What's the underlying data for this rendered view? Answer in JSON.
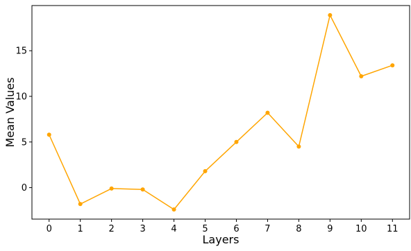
{
  "chart_data": {
    "type": "line",
    "title": "",
    "xlabel": "Layers",
    "ylabel": "Mean Values",
    "x": [
      0,
      1,
      2,
      3,
      4,
      5,
      6,
      7,
      8,
      9,
      10,
      11
    ],
    "series": [
      {
        "values": [
          5.8,
          -1.8,
          -0.1,
          -0.2,
          -2.4,
          1.8,
          5.0,
          8.2,
          4.5,
          18.9,
          12.2,
          13.4
        ],
        "color": "#FFA500",
        "marker": "circle"
      }
    ],
    "x_ticks": [
      "0",
      "1",
      "2",
      "3",
      "4",
      "5",
      "6",
      "7",
      "8",
      "9",
      "10",
      "11"
    ],
    "y_ticks": [
      "0",
      "5",
      "10",
      "15"
    ],
    "xlim": [
      -0.55,
      11.55
    ],
    "ylim": [
      -3.45,
      19.95
    ],
    "grid": false,
    "legend": "none"
  }
}
